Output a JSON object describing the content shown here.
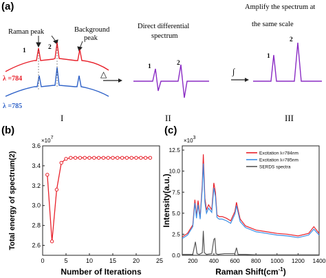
{
  "panel_a": {
    "label": "(a)",
    "raman_peak": "Raman peak",
    "background_peak": "Background peak",
    "peak1": "1",
    "peak2": "2",
    "lambda_784": "λ =784",
    "lambda_785": "λ =785",
    "step_I": "I",
    "step_II": "II",
    "step_III": "III",
    "diff_title_1": "Direct differential",
    "diff_title_2": "spectrum",
    "amp_title_1": "Amplify the spectrum at",
    "amp_title_2": "the same scale",
    "delta_symbol": "△",
    "integral_symbol": "∫",
    "colors": {
      "red": "#e8202a",
      "blue": "#2f62c8",
      "purple": "#8a2bc4"
    }
  },
  "panel_b": {
    "label": "(b)"
  },
  "panel_c": {
    "label": "(c)"
  },
  "chart_data": [
    {
      "type": "line",
      "title": "",
      "xlabel": "Number of Iterations",
      "ylabel": "Total energy of spectrum(2)",
      "y_multiplier": "×10",
      "y_multiplier_exp": "7",
      "xlim": [
        0,
        25
      ],
      "ylim": [
        2.5,
        3.6
      ],
      "xticks": [
        "0",
        "5",
        "10",
        "15",
        "20",
        "25"
      ],
      "yticks": [
        "2.6",
        "2.8",
        "3.0",
        "3.2",
        "3.4",
        "3.6"
      ],
      "color": "#e8202a",
      "series": [
        {
          "x": [
            1,
            2,
            3,
            4,
            5,
            6,
            7,
            8,
            9,
            10,
            11,
            12,
            13,
            14,
            15,
            16,
            17,
            18,
            19,
            20,
            21,
            22,
            23
          ],
          "values": [
            3.31,
            2.64,
            3.16,
            3.43,
            3.47,
            3.48,
            3.48,
            3.48,
            3.48,
            3.48,
            3.48,
            3.48,
            3.48,
            3.48,
            3.48,
            3.48,
            3.48,
            3.48,
            3.48,
            3.48,
            3.48,
            3.48,
            3.48
          ]
        }
      ]
    },
    {
      "type": "line",
      "title": "",
      "xlabel": "Raman Shift(cm",
      "xlabel_exp": "-1",
      "xlabel_end": ")",
      "ylabel": "Intensity(a.u.)",
      "y_multiplier": "×10",
      "y_multiplier_exp": "3",
      "xlim": [
        100,
        1400
      ],
      "ylim": [
        0,
        13
      ],
      "xticks": [
        "200",
        "400",
        "600",
        "800",
        "1000",
        "1200",
        "1400"
      ],
      "yticks": [
        "0.0",
        "2.5",
        "5.0",
        "7.5",
        "10.0",
        "12.5"
      ],
      "legend_position": "top-right",
      "series": [
        {
          "name": "Excitation λ=784nm",
          "color": "#e8202a",
          "x": [
            100,
            150,
            180,
            200,
            220,
            235,
            250,
            270,
            290,
            300,
            315,
            330,
            350,
            380,
            400,
            415,
            430,
            450,
            480,
            520,
            560,
            600,
            615,
            630,
            650,
            700,
            800,
            900,
            1000,
            1100,
            1200,
            1300,
            1350,
            1400
          ],
          "values": [
            2.2,
            2.6,
            3.2,
            3.6,
            6.6,
            4.6,
            6.5,
            4.5,
            8.4,
            12.0,
            6.8,
            5.4,
            6.0,
            5.4,
            8.6,
            7.5,
            4.8,
            4.6,
            4.6,
            4.4,
            4.1,
            5.2,
            6.3,
            5.4,
            4.3,
            3.5,
            3.0,
            2.8,
            2.6,
            2.5,
            2.3,
            2.6,
            3.4,
            2.6
          ]
        },
        {
          "name": "Excitation λ=785nm",
          "color": "#3a8ee6",
          "x": [
            100,
            150,
            180,
            200,
            220,
            235,
            250,
            270,
            290,
            300,
            315,
            330,
            350,
            380,
            400,
            415,
            430,
            450,
            480,
            520,
            560,
            600,
            615,
            630,
            650,
            700,
            800,
            900,
            1000,
            1100,
            1200,
            1300,
            1350,
            1400
          ],
          "values": [
            2.0,
            2.4,
            3.0,
            3.4,
            6.2,
            4.4,
            6.0,
            4.3,
            7.9,
            10.9,
            6.3,
            5.0,
            5.6,
            5.1,
            8.0,
            7.0,
            4.5,
            4.3,
            4.3,
            4.1,
            3.8,
            4.9,
            5.9,
            5.1,
            4.0,
            3.3,
            2.8,
            2.6,
            2.4,
            2.3,
            2.1,
            2.4,
            3.1,
            2.4
          ]
        },
        {
          "name": "SERDS spectra",
          "color": "#555555",
          "x": [
            100,
            200,
            225,
            240,
            260,
            290,
            300,
            310,
            330,
            380,
            400,
            410,
            420,
            440,
            500,
            600,
            615,
            630,
            700,
            800,
            1000,
            1200,
            1400
          ],
          "values": [
            0.1,
            0.1,
            1.6,
            0.2,
            0.1,
            0.3,
            2.9,
            0.3,
            0.1,
            0.2,
            1.9,
            2.0,
            0.2,
            0.1,
            0.2,
            0.2,
            0.9,
            0.1,
            0.1,
            0.05,
            0.05,
            0.05,
            0.05
          ]
        }
      ]
    }
  ]
}
